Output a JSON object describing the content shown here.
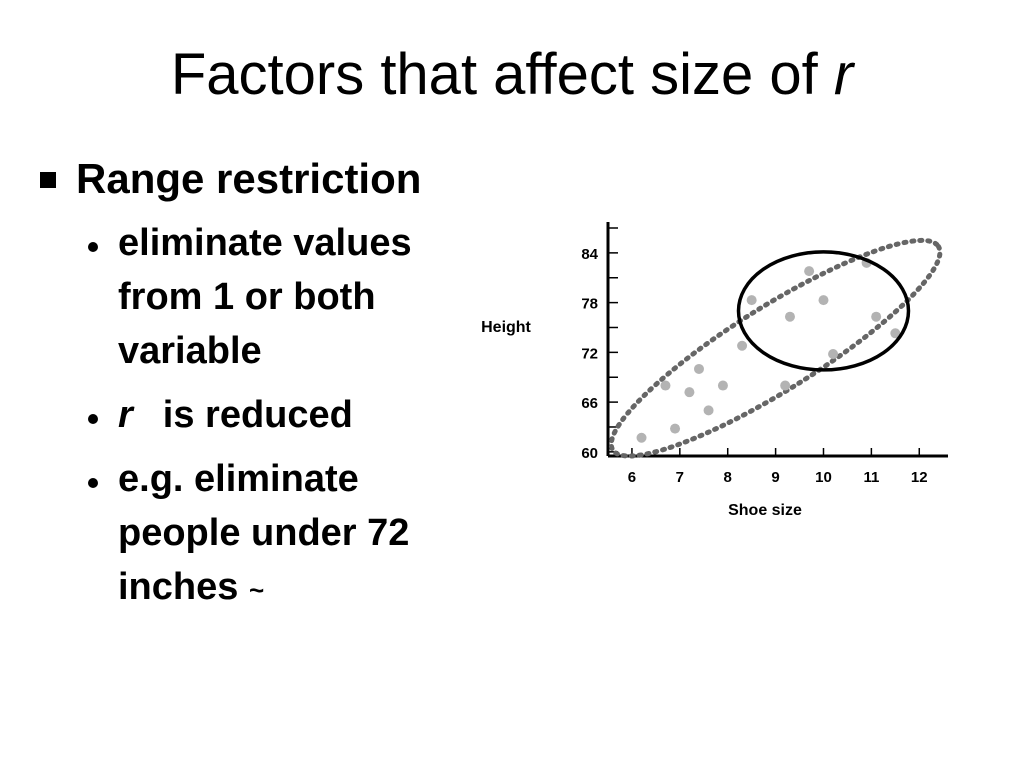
{
  "slide": {
    "title_main": "Factors that affect size of ",
    "title_var": "r",
    "bullet": "Range restriction",
    "sub1": "eliminate values from 1 or both variable",
    "sub2_var": "r",
    "sub2_text": "is reduced",
    "sub3": "e.g. eliminate people under 72 inches",
    "sub3_tilde": "~"
  },
  "chart_data": {
    "type": "scatter",
    "xlabel": "Shoe size",
    "ylabel": "Height",
    "x_ticks": [
      6,
      7,
      8,
      9,
      10,
      11,
      12
    ],
    "y_ticks": [
      60,
      66,
      72,
      78,
      84
    ],
    "xlim": [
      5.5,
      12.6
    ],
    "ylim": [
      59.5,
      87
    ],
    "points": [
      {
        "x": 6.2,
        "y": 61.7
      },
      {
        "x": 6.7,
        "y": 68.0
      },
      {
        "x": 6.9,
        "y": 62.8
      },
      {
        "x": 7.2,
        "y": 67.2
      },
      {
        "x": 7.4,
        "y": 70.0
      },
      {
        "x": 7.6,
        "y": 65.0
      },
      {
        "x": 7.9,
        "y": 68.0
      },
      {
        "x": 8.3,
        "y": 72.8
      },
      {
        "x": 8.5,
        "y": 78.3
      },
      {
        "x": 9.2,
        "y": 68.0
      },
      {
        "x": 9.3,
        "y": 76.3
      },
      {
        "x": 9.7,
        "y": 81.8
      },
      {
        "x": 10.0,
        "y": 78.3
      },
      {
        "x": 10.2,
        "y": 71.8
      },
      {
        "x": 10.9,
        "y": 82.8
      },
      {
        "x": 11.1,
        "y": 76.3
      },
      {
        "x": 11.5,
        "y": 74.3
      }
    ],
    "colors": {
      "points": "#b3b3b3",
      "ellipse_dotted": "#666666",
      "ellipse_solid": "#000000"
    }
  }
}
